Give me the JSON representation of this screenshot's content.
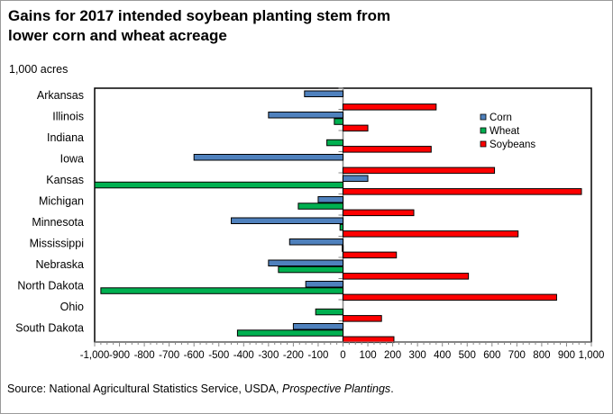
{
  "chart_data": {
    "type": "bar",
    "orientation": "horizontal",
    "title": "Gains for 2017 intended soybean planting stem from lower corn and wheat acreage",
    "title_lines": [
      "Gains for 2017 intended soybean planting stem from",
      "lower corn and wheat acreage"
    ],
    "unit_label": "1,000 acres",
    "xlabel": "",
    "ylabel": "",
    "xlim": [
      -1000,
      1000
    ],
    "x_ticks": [
      -1000,
      -900,
      -800,
      -700,
      -600,
      -500,
      -400,
      -300,
      -200,
      -100,
      0,
      100,
      200,
      300,
      400,
      500,
      600,
      700,
      800,
      900,
      1000
    ],
    "x_tick_labels": [
      "-1,000",
      "-900",
      "-800",
      "-700",
      "-600",
      "-500",
      "-400",
      "-300",
      "-200",
      "-100",
      "0",
      "100",
      "200",
      "300",
      "400",
      "500",
      "600",
      "700",
      "800",
      "900",
      "1,000"
    ],
    "grid": false,
    "legend_position": "top-right",
    "categories": [
      "Arkansas",
      "Illinois",
      "Indiana",
      "Iowa",
      "Kansas",
      "Michigan",
      "Minnesota",
      "Mississippi",
      "Nebraska",
      "North Dakota",
      "Ohio",
      "South Dakota"
    ],
    "series": [
      {
        "name": "Corn",
        "color": "#4f81bd",
        "values": [
          -155,
          -300,
          0,
          -600,
          100,
          -100,
          -450,
          -215,
          -300,
          -150,
          0,
          -200
        ]
      },
      {
        "name": "Wheat",
        "color": "#00b050",
        "values": [
          0,
          -35,
          -65,
          0,
          -1000,
          -180,
          -12,
          -3,
          -260,
          -975,
          -110,
          -425
        ]
      },
      {
        "name": "Soybeans",
        "color": "#ff0000",
        "values": [
          375,
          100,
          355,
          610,
          960,
          285,
          705,
          215,
          505,
          860,
          155,
          205
        ]
      }
    ],
    "source_prefix": "Source: National Agricultural Statistics Service, USDA, ",
    "source_italic": "Prospective Plantings",
    "source_suffix": "."
  }
}
